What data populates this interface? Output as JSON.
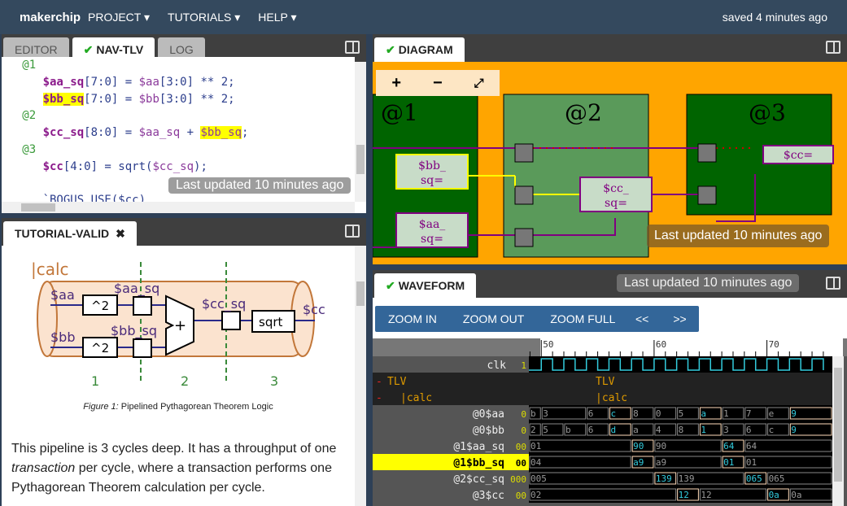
{
  "topbar": {
    "logo": "makerchip",
    "menus": [
      "PROJECT ▾",
      "TUTORIALS ▾",
      "HELP ▾"
    ],
    "saved": "saved 4 minutes ago"
  },
  "editor": {
    "tabs": [
      "EDITOR",
      "NAV-TLV",
      "LOG"
    ],
    "active": 1,
    "toast": "Last updated 10 minutes ago",
    "lines": [
      [
        [
          "st",
          "   @1"
        ]
      ],
      [
        [
          "sig",
          "      $aa_sq"
        ],
        [
          "",
          "[7:0] = "
        ],
        [
          "sv",
          "$aa"
        ],
        [
          "",
          "[3:0] ** 2;"
        ]
      ],
      [
        [
          "",
          "      "
        ],
        [
          "sig hl",
          "$bb_sq"
        ],
        [
          "",
          "[7:0] = "
        ],
        [
          "sv",
          "$bb"
        ],
        [
          "",
          "[3:0] ** 2;"
        ]
      ],
      [
        [
          "st",
          "   @2"
        ]
      ],
      [
        [
          "sig",
          "      $cc_sq"
        ],
        [
          "",
          "[8:0] = "
        ],
        [
          "sv",
          "$aa_sq"
        ],
        [
          "",
          " + "
        ],
        [
          "sv hl",
          "$bb_sq"
        ],
        [
          "",
          ";"
        ]
      ],
      [
        [
          "st",
          "   @3"
        ]
      ],
      [
        [
          "sig",
          "      $cc"
        ],
        [
          "",
          "[4:0] = sqrt("
        ],
        [
          "sv",
          "$cc_sq"
        ],
        [
          "",
          ");"
        ]
      ],
      [
        [
          "",
          ""
        ]
      ],
      [
        [
          "",
          "      `BOGUS_USE($cc)"
        ]
      ]
    ]
  },
  "tutorial": {
    "tab": "TUTORIAL-VALID",
    "figure": {
      "calc": "|calc",
      "aa": "$aa",
      "bb": "$bb",
      "aa_sq": "$aa_sq",
      "bb_sq": "$bb_sq",
      "cc_sq": "$cc_sq",
      "cc": "$cc",
      "sq": "^2",
      "plus": "+",
      "sqrt": "sqrt",
      "stages": [
        "1",
        "2",
        "3"
      ]
    },
    "caption_label": "Figure 1:",
    "caption": " Pipelined Pythagorean Theorem Logic",
    "para": [
      "This pipeline is 3 cycles deep. It has a throughput of one ",
      "transaction",
      " per cycle, where a transaction performs one Pythagorean Theorem calculation per cycle."
    ]
  },
  "diagram": {
    "tab": "DIAGRAM",
    "zoom_in": "+",
    "zoom_out": "−",
    "fit": "⤢",
    "stages": [
      "@1",
      "@2",
      "@3"
    ],
    "bb_sq": [
      "$bb_",
      "sq="
    ],
    "aa_sq": [
      "$aa_",
      "sq="
    ],
    "cc_sq": [
      "$cc_",
      "sq="
    ],
    "cc": "$cc=",
    "toast": "Last updated 10 minutes ago",
    "colors": {
      "bg": "#ffa500",
      "stage": "#006400",
      "stage2": "#5a9a5a"
    }
  },
  "waveform": {
    "tab": "WAVEFORM",
    "buttons": [
      "ZOOM IN",
      "ZOOM OUT",
      "ZOOM FULL"
    ],
    "nav": [
      "<<",
      ">>"
    ],
    "ticks": [
      50,
      60,
      70
    ],
    "time_range": [
      48.9,
      75.8
    ],
    "toast": "Last updated 10 minutes ago",
    "clk": {
      "name": "clk",
      "value": "1"
    },
    "scopes": [
      {
        "name": "TLV",
        "label": "TLV"
      },
      {
        "name": "|calc",
        "label": "|calc"
      }
    ],
    "signals": [
      {
        "name": "@0$aa",
        "value": "0",
        "changes": [
          [
            48,
            "b"
          ],
          [
            50,
            "3"
          ],
          [
            54,
            "6"
          ],
          [
            56,
            "c",
            1
          ],
          [
            58,
            "8"
          ],
          [
            60,
            "0"
          ],
          [
            62,
            "5"
          ],
          [
            64,
            "a",
            1
          ],
          [
            66,
            "1"
          ],
          [
            68,
            "7"
          ],
          [
            70,
            "e"
          ],
          [
            72,
            "9",
            1
          ]
        ]
      },
      {
        "name": "@0$bb",
        "value": "0",
        "changes": [
          [
            48,
            "2"
          ],
          [
            50,
            "5"
          ],
          [
            52,
            "b"
          ],
          [
            54,
            "6"
          ],
          [
            56,
            "d",
            1
          ],
          [
            58,
            "a"
          ],
          [
            60,
            "4"
          ],
          [
            62,
            "8"
          ],
          [
            64,
            "1",
            1
          ],
          [
            66,
            "3"
          ],
          [
            68,
            "6"
          ],
          [
            70,
            "c"
          ],
          [
            72,
            "9",
            1
          ]
        ]
      },
      {
        "name": "@1$aa_sq",
        "value": "00",
        "changes": [
          [
            48,
            "01"
          ],
          [
            58,
            "90",
            1
          ],
          [
            60,
            "90"
          ],
          [
            66,
            "64",
            1
          ],
          [
            68,
            "64"
          ]
        ]
      },
      {
        "name": "@1$bb_sq",
        "value": "00",
        "selected": true,
        "changes": [
          [
            48,
            "04"
          ],
          [
            58,
            "a9",
            1
          ],
          [
            60,
            "a9"
          ],
          [
            66,
            "01",
            1
          ],
          [
            68,
            "01"
          ]
        ]
      },
      {
        "name": "@2$cc_sq",
        "value": "000",
        "changes": [
          [
            48,
            "005"
          ],
          [
            60,
            "139",
            1
          ],
          [
            62,
            "139"
          ],
          [
            68,
            "065",
            1
          ],
          [
            70,
            "065"
          ]
        ]
      },
      {
        "name": "@3$cc",
        "value": "00",
        "changes": [
          [
            48,
            "02"
          ],
          [
            62,
            "12",
            1
          ],
          [
            64,
            "12"
          ],
          [
            70,
            "0a",
            1
          ],
          [
            72,
            "0a"
          ]
        ]
      }
    ]
  }
}
